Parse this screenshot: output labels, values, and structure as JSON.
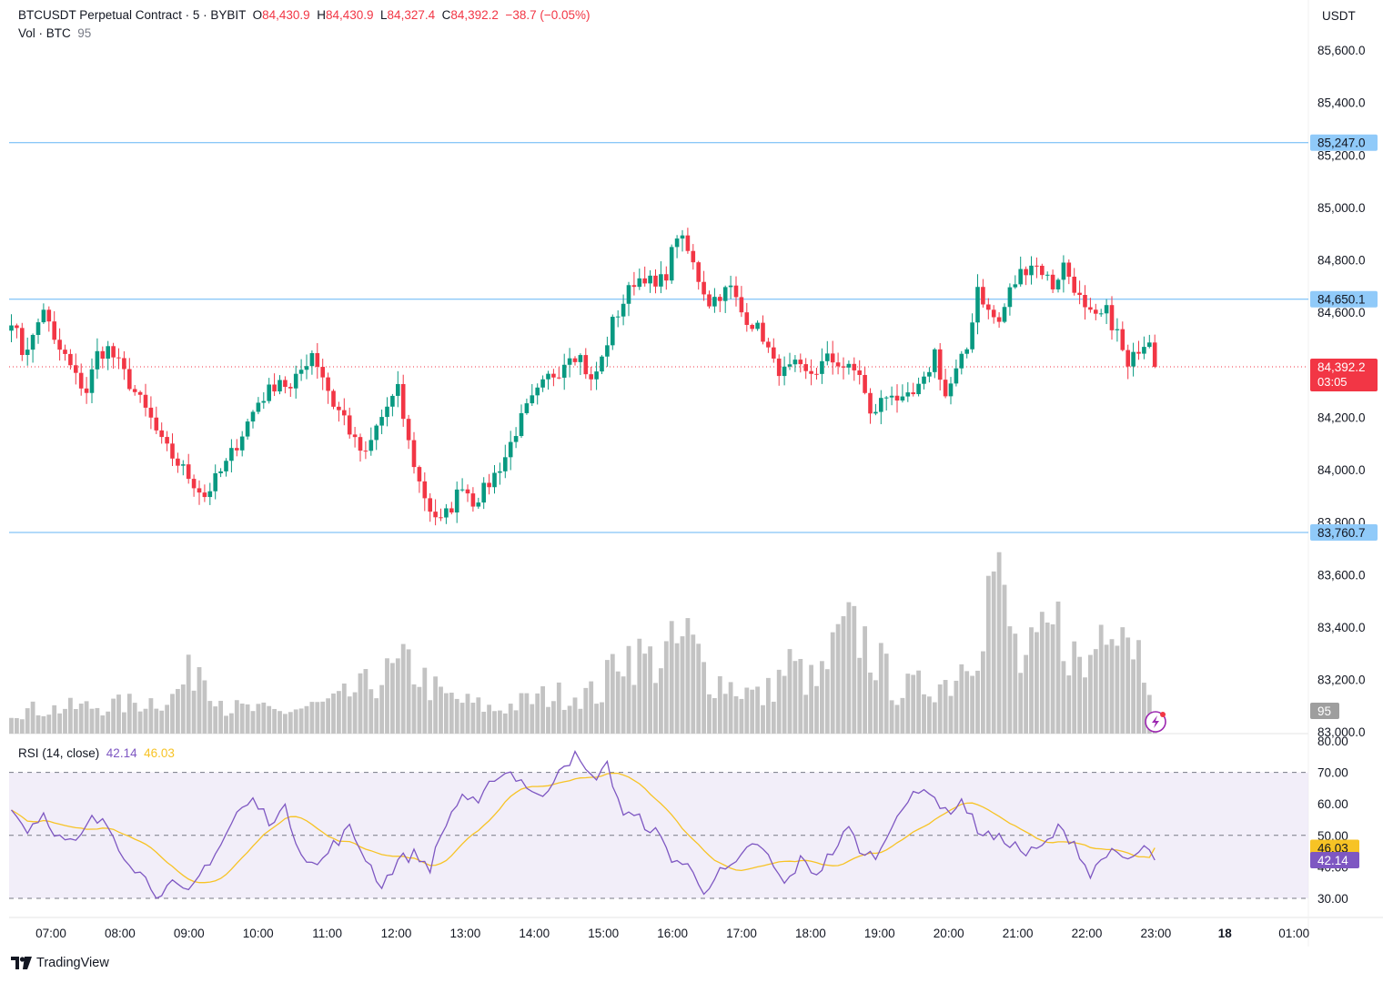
{
  "header": {
    "symbol": "BTCUSDT Perpetual Contract · 5 · BYBIT",
    "o_label": "O",
    "o": "84,430.9",
    "h_label": "H",
    "h": "84,430.9",
    "l_label": "L",
    "l": "84,327.4",
    "c_label": "C",
    "c": "84,392.2",
    "change": "−38.7 (−0.05%)"
  },
  "volume_header": {
    "label": "Vol · BTC",
    "value": "95"
  },
  "rsi_header": {
    "label": "RSI (14, close)",
    "rsi": "42.14",
    "ma": "46.03"
  },
  "price_axis": {
    "currency": "USDT",
    "ticks": [
      "85,600.0",
      "85,400.0",
      "85,200.0",
      "85,000.0",
      "84,800.0",
      "84,600.0",
      "84,200.0",
      "84,000.0",
      "83,800.0",
      "83,600.0",
      "83,400.0",
      "83,200.0",
      "83,000.0"
    ],
    "tick_values": [
      85600,
      85400,
      85200,
      85000,
      84800,
      84600,
      84200,
      84000,
      83800,
      83600,
      83400,
      83200,
      83000
    ]
  },
  "horizontal_lines": [
    {
      "label": "85,247.0",
      "value": 85247.0
    },
    {
      "label": "84,650.1",
      "value": 84650.1
    },
    {
      "label": "83,760.7",
      "value": 83760.7
    }
  ],
  "last_price": {
    "label": "84,392.2",
    "countdown": "03:05",
    "value": 84392.2
  },
  "volume_badge": "95",
  "rsi_axis": {
    "ticks": [
      "80.00",
      "70.00",
      "60.00",
      "50.00",
      "40.00",
      "30.00"
    ],
    "tick_values": [
      80,
      70,
      60,
      50,
      40,
      30
    ],
    "rsi_badge": "42.14",
    "ma_badge": "46.03"
  },
  "time_axis": [
    "07:00",
    "08:00",
    "09:00",
    "10:00",
    "11:00",
    "12:00",
    "13:00",
    "14:00",
    "15:00",
    "16:00",
    "17:00",
    "18:00",
    "19:00",
    "20:00",
    "21:00",
    "22:00",
    "23:00",
    "18",
    "01:00"
  ],
  "branding": "TradingView",
  "colors": {
    "up": "#089981",
    "down": "#f23645",
    "volume": "#c3c3c3",
    "rsi": "#7e57c2",
    "rsi_ma": "#f7c325",
    "hline": "#64b5f6",
    "rsi_band": "#ede7f6"
  },
  "chart_data": {
    "type": "candlestick",
    "interval": "5m",
    "anchors_close": [
      [
        0,
        84580
      ],
      [
        2,
        84450
      ],
      [
        4,
        84500
      ],
      [
        6,
        84620
      ],
      [
        8,
        84480
      ],
      [
        10,
        84430
      ],
      [
        12,
        84350
      ],
      [
        14,
        84300
      ],
      [
        16,
        84440
      ],
      [
        18,
        84460
      ],
      [
        20,
        84400
      ],
      [
        22,
        84330
      ],
      [
        24,
        84260
      ],
      [
        26,
        84190
      ],
      [
        28,
        84100
      ],
      [
        30,
        84050
      ],
      [
        32,
        84000
      ],
      [
        34,
        83950
      ],
      [
        36,
        83900
      ],
      [
        38,
        83960
      ],
      [
        40,
        84020
      ],
      [
        42,
        84100
      ],
      [
        44,
        84180
      ],
      [
        46,
        84260
      ],
      [
        48,
        84300
      ],
      [
        50,
        84350
      ],
      [
        52,
        84300
      ],
      [
        54,
        84380
      ],
      [
        56,
        84450
      ],
      [
        58,
        84360
      ],
      [
        60,
        84250
      ],
      [
        62,
        84200
      ],
      [
        64,
        84100
      ],
      [
        66,
        84050
      ],
      [
        68,
        84160
      ],
      [
        70,
        84240
      ],
      [
        72,
        84300
      ],
      [
        74,
        84100
      ],
      [
        76,
        83950
      ],
      [
        78,
        83850
      ],
      [
        80,
        83800
      ],
      [
        82,
        83860
      ],
      [
        84,
        83950
      ],
      [
        86,
        83880
      ],
      [
        88,
        83920
      ],
      [
        90,
        83980
      ],
      [
        92,
        84050
      ],
      [
        94,
        84150
      ],
      [
        96,
        84230
      ],
      [
        98,
        84290
      ],
      [
        100,
        84350
      ],
      [
        102,
        84380
      ],
      [
        104,
        84450
      ],
      [
        106,
        84430
      ],
      [
        108,
        84330
      ],
      [
        110,
        84420
      ],
      [
        112,
        84560
      ],
      [
        114,
        84640
      ],
      [
        116,
        84720
      ],
      [
        118,
        84740
      ],
      [
        120,
        84690
      ],
      [
        122,
        84750
      ],
      [
        124,
        84900
      ],
      [
        126,
        84830
      ],
      [
        128,
        84730
      ],
      [
        130,
        84640
      ],
      [
        132,
        84670
      ],
      [
        134,
        84690
      ],
      [
        136,
        84600
      ],
      [
        138,
        84560
      ],
      [
        140,
        84510
      ],
      [
        142,
        84400
      ],
      [
        144,
        84370
      ],
      [
        146,
        84390
      ],
      [
        148,
        84360
      ],
      [
        150,
        84380
      ],
      [
        152,
        84420
      ],
      [
        154,
        84410
      ],
      [
        156,
        84380
      ],
      [
        158,
        84370
      ],
      [
        160,
        84200
      ],
      [
        162,
        84260
      ],
      [
        164,
        84300
      ],
      [
        166,
        84250
      ],
      [
        168,
        84280
      ],
      [
        170,
        84330
      ],
      [
        172,
        84450
      ],
      [
        174,
        84280
      ],
      [
        176,
        84370
      ],
      [
        178,
        84460
      ],
      [
        180,
        84700
      ],
      [
        182,
        84600
      ],
      [
        184,
        84560
      ],
      [
        186,
        84680
      ],
      [
        188,
        84750
      ],
      [
        190,
        84790
      ],
      [
        192,
        84760
      ],
      [
        194,
        84700
      ],
      [
        196,
        84780
      ],
      [
        198,
        84700
      ],
      [
        200,
        84600
      ],
      [
        202,
        84570
      ],
      [
        204,
        84600
      ],
      [
        206,
        84520
      ],
      [
        208,
        84380
      ],
      [
        210,
        84470
      ],
      [
        212,
        84510
      ],
      [
        213,
        84392.2
      ]
    ],
    "volume_anchors": [
      [
        0,
        95
      ],
      [
        20,
        120
      ],
      [
        30,
        150
      ],
      [
        35,
        300
      ],
      [
        40,
        110
      ],
      [
        50,
        90
      ],
      [
        60,
        130
      ],
      [
        74,
        290
      ],
      [
        80,
        160
      ],
      [
        90,
        100
      ],
      [
        100,
        160
      ],
      [
        110,
        170
      ],
      [
        113,
        350
      ],
      [
        120,
        300
      ],
      [
        126,
        400
      ],
      [
        130,
        240
      ],
      [
        140,
        150
      ],
      [
        145,
        290
      ],
      [
        150,
        200
      ],
      [
        155,
        420
      ],
      [
        158,
        420
      ],
      [
        165,
        180
      ],
      [
        170,
        200
      ],
      [
        175,
        220
      ],
      [
        180,
        410
      ],
      [
        183,
        700
      ],
      [
        188,
        280
      ],
      [
        195,
        450
      ],
      [
        200,
        250
      ],
      [
        205,
        600
      ],
      [
        206,
        550
      ],
      [
        208,
        460
      ],
      [
        212,
        250
      ],
      [
        213,
        95
      ]
    ],
    "rsi_anchors": [
      [
        0,
        58
      ],
      [
        3,
        52
      ],
      [
        6,
        57
      ],
      [
        9,
        49
      ],
      [
        12,
        47
      ],
      [
        15,
        55
      ],
      [
        18,
        53
      ],
      [
        21,
        44
      ],
      [
        24,
        38
      ],
      [
        27,
        32
      ],
      [
        30,
        34
      ],
      [
        33,
        31
      ],
      [
        36,
        40
      ],
      [
        39,
        47
      ],
      [
        42,
        57
      ],
      [
        45,
        61
      ],
      [
        48,
        55
      ],
      [
        51,
        58
      ],
      [
        54,
        45
      ],
      [
        57,
        40
      ],
      [
        60,
        47
      ],
      [
        63,
        52
      ],
      [
        66,
        43
      ],
      [
        69,
        34
      ],
      [
        72,
        42
      ],
      [
        75,
        44
      ],
      [
        78,
        40
      ],
      [
        81,
        54
      ],
      [
        84,
        63
      ],
      [
        87,
        59
      ],
      [
        90,
        69
      ],
      [
        93,
        70
      ],
      [
        96,
        66
      ],
      [
        99,
        61
      ],
      [
        102,
        72
      ],
      [
        105,
        75
      ],
      [
        108,
        68
      ],
      [
        111,
        72
      ],
      [
        114,
        57
      ],
      [
        117,
        55
      ],
      [
        120,
        51
      ],
      [
        123,
        43
      ],
      [
        126,
        40
      ],
      [
        129,
        33
      ],
      [
        132,
        38
      ],
      [
        135,
        40
      ],
      [
        138,
        48
      ],
      [
        141,
        43
      ],
      [
        144,
        34
      ],
      [
        147,
        42
      ],
      [
        150,
        38
      ],
      [
        153,
        45
      ],
      [
        156,
        52
      ],
      [
        159,
        43
      ],
      [
        162,
        45
      ],
      [
        165,
        58
      ],
      [
        168,
        62
      ],
      [
        171,
        65
      ],
      [
        174,
        57
      ],
      [
        177,
        61
      ],
      [
        180,
        52
      ],
      [
        183,
        49
      ],
      [
        186,
        48
      ],
      [
        189,
        44
      ],
      [
        192,
        46
      ],
      [
        195,
        52
      ],
      [
        198,
        48
      ],
      [
        201,
        37
      ],
      [
        204,
        45
      ],
      [
        207,
        42
      ],
      [
        209,
        43
      ],
      [
        211,
        46
      ],
      [
        213,
        42.14
      ]
    ]
  }
}
